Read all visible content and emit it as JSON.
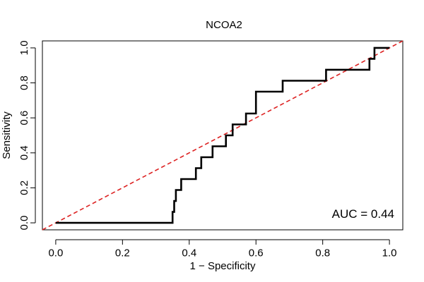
{
  "chart_data": {
    "type": "line",
    "title": "NCOA2",
    "xlabel": "1 − Specificity",
    "ylabel": "Sensitivity",
    "xlim": [
      -0.04,
      1.04
    ],
    "ylim": [
      -0.04,
      1.04
    ],
    "x_ticks": [
      0.0,
      0.2,
      0.4,
      0.6,
      0.8,
      1.0
    ],
    "x_tick_labels": [
      "0.0",
      "0.2",
      "0.4",
      "0.6",
      "0.8",
      "1.0"
    ],
    "y_ticks": [
      0.0,
      0.2,
      0.4,
      0.6,
      0.8,
      1.0
    ],
    "y_tick_labels": [
      "0.0",
      "0.2",
      "0.4",
      "0.6",
      "0.8",
      "1.0"
    ],
    "grid": false,
    "annotation": "AUC = 0.44",
    "series": [
      {
        "name": "ROC curve",
        "color": "#000000",
        "style": "step",
        "points": [
          [
            0.0,
            0.0
          ],
          [
            0.35,
            0.0
          ],
          [
            0.35,
            0.0625
          ],
          [
            0.355,
            0.0625
          ],
          [
            0.355,
            0.125
          ],
          [
            0.36,
            0.125
          ],
          [
            0.36,
            0.1875
          ],
          [
            0.376,
            0.1875
          ],
          [
            0.376,
            0.25
          ],
          [
            0.42,
            0.25
          ],
          [
            0.42,
            0.3125
          ],
          [
            0.436,
            0.3125
          ],
          [
            0.436,
            0.375
          ],
          [
            0.47,
            0.375
          ],
          [
            0.47,
            0.4375
          ],
          [
            0.51,
            0.4375
          ],
          [
            0.51,
            0.5
          ],
          [
            0.53,
            0.5
          ],
          [
            0.53,
            0.5625
          ],
          [
            0.57,
            0.5625
          ],
          [
            0.57,
            0.625
          ],
          [
            0.6,
            0.625
          ],
          [
            0.6,
            0.75
          ],
          [
            0.68,
            0.75
          ],
          [
            0.68,
            0.8125
          ],
          [
            0.81,
            0.8125
          ],
          [
            0.81,
            0.875
          ],
          [
            0.94,
            0.875
          ],
          [
            0.94,
            0.9375
          ],
          [
            0.955,
            0.9375
          ],
          [
            0.955,
            1.0
          ],
          [
            1.0,
            1.0
          ]
        ]
      },
      {
        "name": "Reference line",
        "color": "#dd2222",
        "style": "dashed",
        "points": [
          [
            -0.04,
            -0.04
          ],
          [
            1.04,
            1.04
          ]
        ]
      }
    ]
  }
}
